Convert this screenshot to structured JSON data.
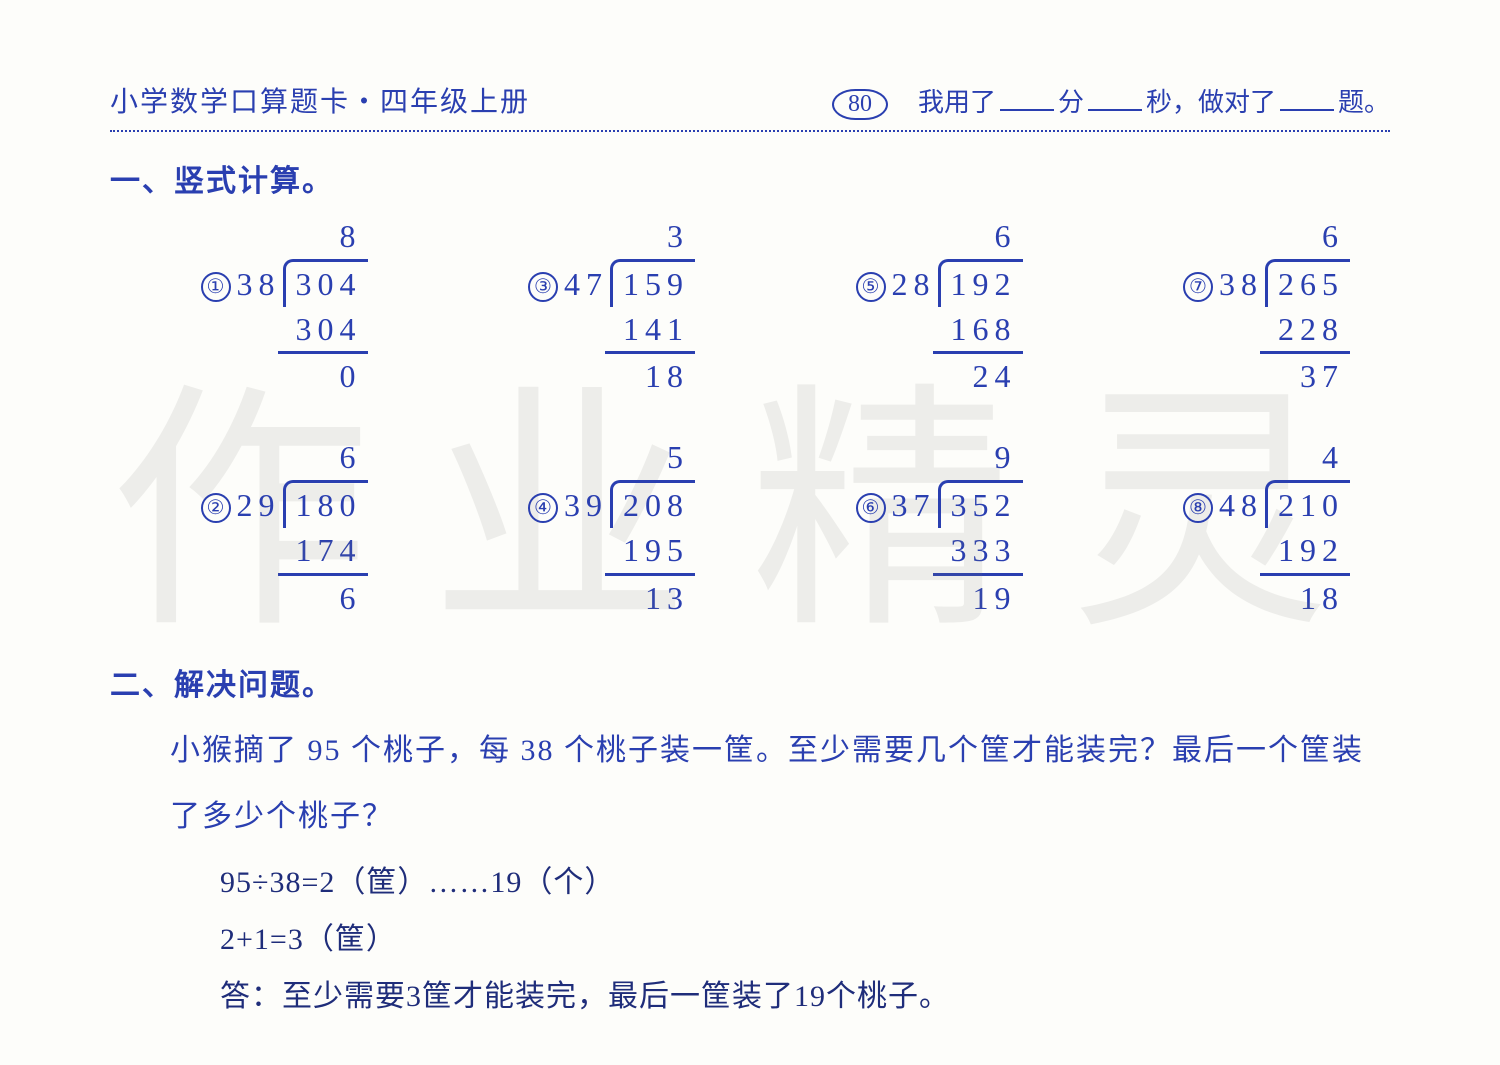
{
  "colors": {
    "ink": "#2a3fb0",
    "bg": "#fdfdfa",
    "answer": "#1f2d7a",
    "watermark": "rgba(120,120,120,0.12)"
  },
  "header": {
    "title": "小学数学口算题卡・四年级上册",
    "page_number": "80",
    "blanks_prefix": "我用了",
    "min_label": "分",
    "sec_label": "秒，做对了",
    "suffix": "题。"
  },
  "section1": {
    "title": "一、竖式计算。",
    "problems": [
      {
        "num": "①",
        "divisor": "38",
        "dividend": "304",
        "quotient": "8",
        "sub": "304",
        "remainder": "0"
      },
      {
        "num": "③",
        "divisor": "47",
        "dividend": "159",
        "quotient": "3",
        "sub": "141",
        "remainder": "18"
      },
      {
        "num": "⑤",
        "divisor": "28",
        "dividend": "192",
        "quotient": "6",
        "sub": "168",
        "remainder": "24"
      },
      {
        "num": "⑦",
        "divisor": "38",
        "dividend": "265",
        "quotient": "6",
        "sub": "228",
        "remainder": "37"
      },
      {
        "num": "②",
        "divisor": "29",
        "dividend": "180",
        "quotient": "6",
        "sub": "174",
        "remainder": "6"
      },
      {
        "num": "④",
        "divisor": "39",
        "dividend": "208",
        "quotient": "5",
        "sub": "195",
        "remainder": "13"
      },
      {
        "num": "⑥",
        "divisor": "37",
        "dividend": "352",
        "quotient": "9",
        "sub": "333",
        "remainder": "19"
      },
      {
        "num": "⑧",
        "divisor": "48",
        "dividend": "210",
        "quotient": "4",
        "sub": "192",
        "remainder": "18"
      }
    ]
  },
  "section2": {
    "title": "二、解决问题。",
    "question_line1": "小猴摘了 95 个桃子，每 38 个桃子装一筐。至少需要几个筐才能装完？最后一个筐装",
    "question_line2": "了多少个桃子？",
    "ans_line1": "95÷38=2（筐）……19（个）",
    "ans_line2": "2+1=3（筐）",
    "ans_line3": "答：至少需要3筐才能装完，最后一筐装了19个桃子。"
  },
  "watermark": "作业精灵"
}
